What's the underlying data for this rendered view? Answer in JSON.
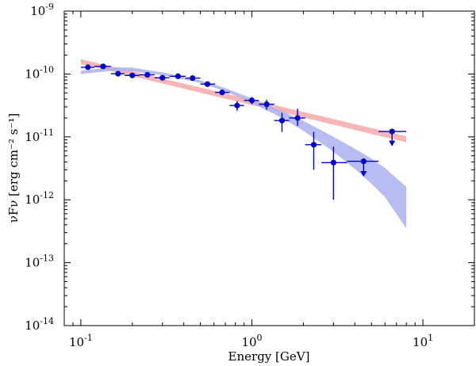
{
  "chart_data": {
    "type": "scatter",
    "xlabel": "Energy [GeV]",
    "ylabel": "νFν [erg cm⁻² s⁻¹]",
    "xscale": "log",
    "yscale": "log",
    "xlim": [
      0.08,
      20
    ],
    "ylim": [
      1e-14,
      1e-09
    ],
    "grid": false,
    "legend": "none",
    "x_ticks": [
      {
        "value": 0.1,
        "base": "10",
        "exp": "-1"
      },
      {
        "value": 1,
        "base": "10",
        "exp": "0"
      },
      {
        "value": 10,
        "base": "10",
        "exp": "1"
      }
    ],
    "y_ticks": [
      {
        "value": 1e-14,
        "base": "10",
        "exp": "-14"
      },
      {
        "value": 1e-13,
        "base": "10",
        "exp": "-13"
      },
      {
        "value": 1e-12,
        "base": "10",
        "exp": "-12"
      },
      {
        "value": 1e-11,
        "base": "10",
        "exp": "-11"
      },
      {
        "value": 1e-10,
        "base": "10",
        "exp": "-10"
      },
      {
        "value": 1e-09,
        "base": "10",
        "exp": "-9"
      }
    ],
    "bands": [
      {
        "kind": "power-law",
        "color": "#f4a9a9",
        "x": [
          0.1,
          8
        ],
        "lower": [
          1.45e-10,
          8.2e-12
        ],
        "upper": [
          1.72e-10,
          1.02e-11
        ]
      },
      {
        "kind": "curved",
        "color": "#aab0ee",
        "x": [
          0.1,
          0.15,
          0.2,
          0.3,
          0.5,
          0.7,
          1.0,
          1.5,
          2.0,
          3.0,
          4.0,
          5.0,
          6.0,
          8.0
        ],
        "lower": [
          1e-10,
          1.12e-10,
          1.1e-10,
          9.6e-11,
          7.2e-11,
          5.3e-11,
          3.45e-11,
          2e-11,
          1.25e-11,
          5.8e-12,
          3.1e-12,
          1.8e-12,
          1.1e-12,
          3.5e-13
        ],
        "upper": [
          1.12e-10,
          1.28e-10,
          1.26e-10,
          1.06e-10,
          7.9e-11,
          5.95e-11,
          4.1e-11,
          2.55e-11,
          1.8e-11,
          1e-11,
          6.5e-12,
          4.5e-12,
          3.2e-12,
          1.6e-12
        ]
      }
    ],
    "series": [
      {
        "color": "#0000cc",
        "points": [
          {
            "x": 0.11,
            "y": 1.28e-10,
            "xlo": 0.1,
            "xhi": 0.12,
            "ylo": 1.18e-10,
            "yhi": 1.38e-10
          },
          {
            "x": 0.135,
            "y": 1.32e-10,
            "xlo": 0.12,
            "xhi": 0.15,
            "ylo": 1.22e-10,
            "yhi": 1.43e-10
          },
          {
            "x": 0.165,
            "y": 1.01e-10,
            "xlo": 0.15,
            "xhi": 0.18,
            "ylo": 9.4e-11,
            "yhi": 1.08e-10
          },
          {
            "x": 0.2,
            "y": 9.5e-11,
            "xlo": 0.18,
            "xhi": 0.22,
            "ylo": 8.9e-11,
            "yhi": 1.01e-10
          },
          {
            "x": 0.245,
            "y": 9.7e-11,
            "xlo": 0.22,
            "xhi": 0.27,
            "ylo": 9e-11,
            "yhi": 1.04e-10
          },
          {
            "x": 0.3,
            "y": 8.7e-11,
            "xlo": 0.27,
            "xhi": 0.33,
            "ylo": 8.1e-11,
            "yhi": 9.3e-11
          },
          {
            "x": 0.37,
            "y": 9.2e-11,
            "xlo": 0.33,
            "xhi": 0.41,
            "ylo": 8.6e-11,
            "yhi": 9.8e-11
          },
          {
            "x": 0.45,
            "y": 8.6e-11,
            "xlo": 0.41,
            "xhi": 0.5,
            "ylo": 8e-11,
            "yhi": 9.2e-11
          },
          {
            "x": 0.55,
            "y": 6.9e-11,
            "xlo": 0.5,
            "xhi": 0.61,
            "ylo": 6.3e-11,
            "yhi": 7.5e-11
          },
          {
            "x": 0.67,
            "y": 5.1e-11,
            "xlo": 0.61,
            "xhi": 0.74,
            "ylo": 4.6e-11,
            "yhi": 5.6e-11
          },
          {
            "x": 0.82,
            "y": 3.15e-11,
            "xlo": 0.74,
            "xhi": 0.9,
            "ylo": 2.6e-11,
            "yhi": 3.7e-11
          },
          {
            "x": 1.0,
            "y": 3.8e-11,
            "xlo": 0.9,
            "xhi": 1.1,
            "ylo": 3.3e-11,
            "yhi": 4.3e-11
          },
          {
            "x": 1.22,
            "y": 3.3e-11,
            "xlo": 1.1,
            "xhi": 1.35,
            "ylo": 2.7e-11,
            "yhi": 3.9e-11
          },
          {
            "x": 1.5,
            "y": 1.82e-11,
            "xlo": 1.35,
            "xhi": 1.65,
            "ylo": 1.2e-11,
            "yhi": 2.4e-11
          },
          {
            "x": 1.85,
            "y": 2e-11,
            "xlo": 1.65,
            "xhi": 2.05,
            "ylo": 1.5e-11,
            "yhi": 2.8e-11
          },
          {
            "x": 2.3,
            "y": 7.5e-12,
            "xlo": 2.05,
            "xhi": 2.55,
            "ylo": 3e-12,
            "yhi": 1.2e-11
          },
          {
            "x": 3.0,
            "y": 3.9e-12,
            "xlo": 2.55,
            "xhi": 3.6,
            "ylo": 1e-12,
            "yhi": 7e-12
          },
          {
            "x": 4.5,
            "y": 4.1e-12,
            "xlo": 3.6,
            "xhi": 5.5,
            "ylo": 2.4e-12,
            "yhi": 4.1e-12,
            "upper_limit": true
          },
          {
            "x": 6.6,
            "y": 1.22e-11,
            "xlo": 5.5,
            "xhi": 8.0,
            "ylo": 7.3e-12,
            "yhi": 1.22e-11,
            "upper_limit": true
          }
        ]
      }
    ]
  }
}
